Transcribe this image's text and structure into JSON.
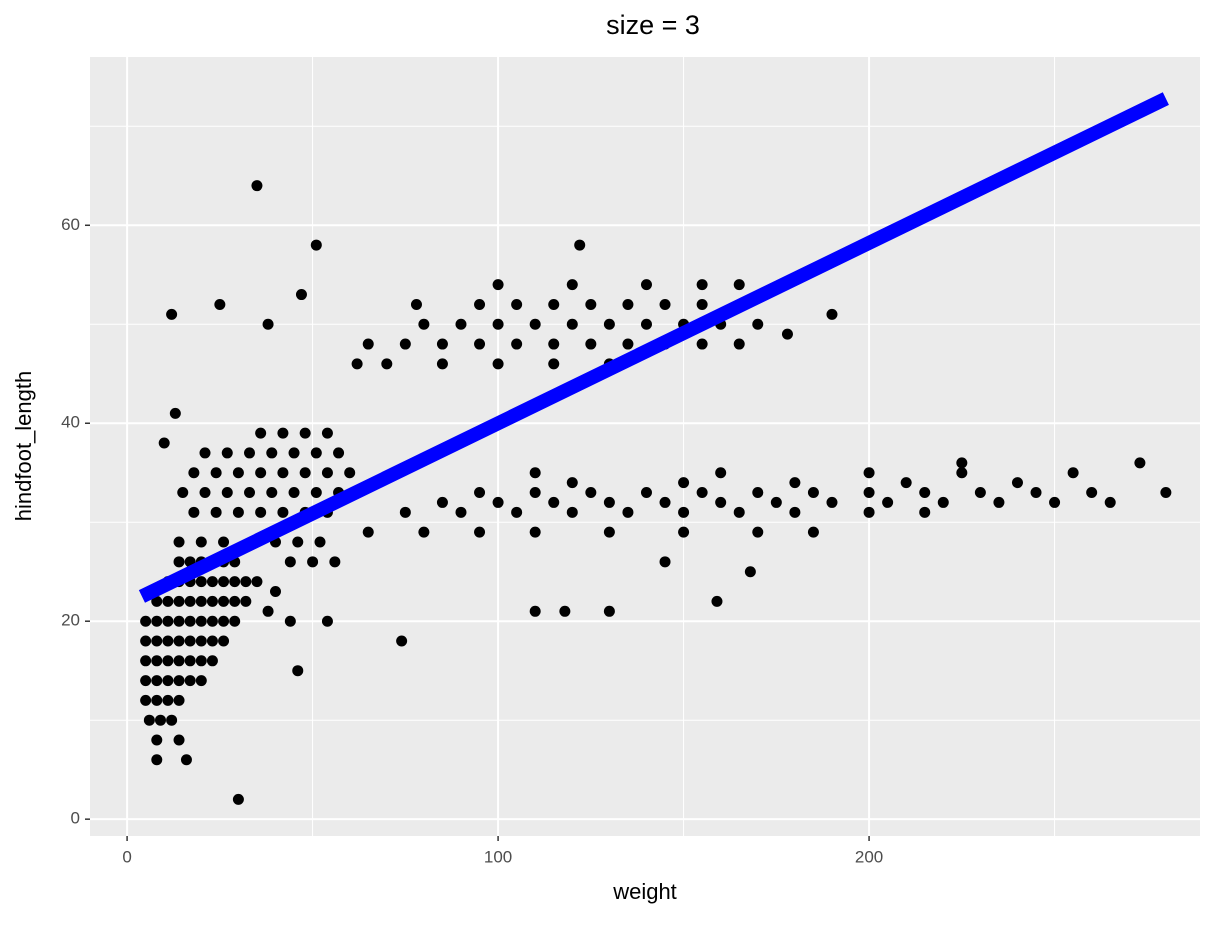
{
  "chart_data": {
    "type": "scatter",
    "title": "size = 3",
    "x_label": "weight",
    "y_label": "hindfoot_length",
    "xlim": [
      -10,
      289.2
    ],
    "ylim": [
      -1.7,
      77.0
    ],
    "xticks": [
      0,
      100,
      200
    ],
    "yticks": [
      0,
      20,
      40,
      60
    ],
    "xminor": [
      50,
      150,
      250
    ],
    "yminor": [
      10,
      30,
      50,
      70
    ],
    "grid": true,
    "background": "#ebebeb",
    "series": [
      {
        "type": "scatter",
        "color": "#000000",
        "x": [
          5,
          8,
          11,
          14,
          5,
          8,
          11,
          14,
          17,
          20,
          5,
          8,
          11,
          14,
          17,
          20,
          23,
          5,
          8,
          11,
          14,
          17,
          20,
          23,
          26,
          5,
          8,
          11,
          14,
          17,
          20,
          23,
          26,
          29,
          8,
          11,
          14,
          17,
          20,
          23,
          26,
          29,
          32,
          11,
          14,
          17,
          20,
          23,
          26,
          29,
          32,
          35,
          14,
          17,
          20,
          23,
          26,
          29,
          6,
          9,
          12,
          8,
          14,
          8,
          16,
          14,
          20,
          26,
          18,
          24,
          30,
          36,
          42,
          48,
          54,
          15,
          21,
          27,
          33,
          39,
          45,
          51,
          57,
          18,
          24,
          30,
          36,
          42,
          48,
          54,
          60,
          21,
          27,
          33,
          39,
          45,
          51,
          57,
          36,
          42,
          48,
          54,
          40,
          46,
          52,
          44,
          50,
          56,
          38,
          44,
          40,
          62,
          70,
          85,
          100,
          115,
          130,
          65,
          75,
          85,
          95,
          105,
          115,
          125,
          135,
          145,
          155,
          165,
          80,
          90,
          100,
          110,
          120,
          130,
          140,
          150,
          160,
          170,
          78,
          95,
          105,
          115,
          125,
          135,
          145,
          155,
          100,
          120,
          140,
          155,
          165,
          65,
          80,
          95,
          110,
          130,
          150,
          170,
          185,
          75,
          90,
          105,
          120,
          135,
          150,
          165,
          180,
          200,
          215,
          85,
          100,
          115,
          130,
          145,
          160,
          175,
          190,
          205,
          220,
          235,
          250,
          265,
          95,
          110,
          125,
          140,
          155,
          170,
          185,
          200,
          215,
          230,
          245,
          260,
          280,
          120,
          150,
          180,
          210,
          240,
          110,
          160,
          200,
          225,
          255,
          225,
          273,
          35,
          51,
          30,
          12,
          25,
          47,
          38,
          122,
          190,
          178,
          159,
          74,
          110,
          118,
          130,
          145,
          168,
          13,
          10,
          54,
          46
        ],
        "values": [
          12,
          12,
          12,
          12,
          14,
          14,
          14,
          14,
          14,
          14,
          16,
          16,
          16,
          16,
          16,
          16,
          16,
          18,
          18,
          18,
          18,
          18,
          18,
          18,
          18,
          20,
          20,
          20,
          20,
          20,
          20,
          20,
          20,
          20,
          22,
          22,
          22,
          22,
          22,
          22,
          22,
          22,
          22,
          24,
          24,
          24,
          24,
          24,
          24,
          24,
          24,
          24,
          26,
          26,
          26,
          26,
          26,
          26,
          10,
          10,
          10,
          8,
          8,
          6,
          6,
          28,
          28,
          28,
          31,
          31,
          31,
          31,
          31,
          31,
          31,
          33,
          33,
          33,
          33,
          33,
          33,
          33,
          33,
          35,
          35,
          35,
          35,
          35,
          35,
          35,
          35,
          37,
          37,
          37,
          37,
          37,
          37,
          37,
          39,
          39,
          39,
          39,
          28,
          28,
          28,
          26,
          26,
          26,
          21,
          20,
          23,
          46,
          46,
          46,
          46,
          46,
          46,
          48,
          48,
          48,
          48,
          48,
          48,
          48,
          48,
          48,
          48,
          48,
          50,
          50,
          50,
          50,
          50,
          50,
          50,
          50,
          50,
          50,
          52,
          52,
          52,
          52,
          52,
          52,
          52,
          52,
          54,
          54,
          54,
          54,
          54,
          29,
          29,
          29,
          29,
          29,
          29,
          29,
          29,
          31,
          31,
          31,
          31,
          31,
          31,
          31,
          31,
          31,
          31,
          32,
          32,
          32,
          32,
          32,
          32,
          32,
          32,
          32,
          32,
          32,
          32,
          32,
          33,
          33,
          33,
          33,
          33,
          33,
          33,
          33,
          33,
          33,
          33,
          33,
          33,
          34,
          34,
          34,
          34,
          34,
          35,
          35,
          35,
          35,
          35,
          36,
          36,
          64,
          58,
          2,
          51,
          52,
          53,
          50,
          58,
          51,
          49,
          22,
          18,
          21,
          21,
          21,
          26,
          25,
          41,
          38,
          20,
          15
        ]
      },
      {
        "type": "line",
        "color": "#0000ff",
        "x": [
          4,
          280
        ],
        "values": [
          22.5,
          72.8
        ]
      }
    ]
  }
}
